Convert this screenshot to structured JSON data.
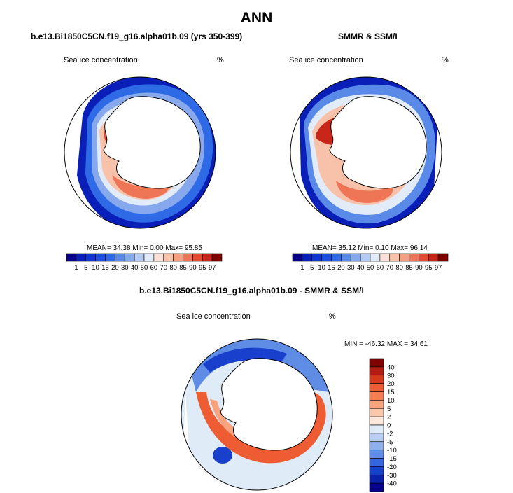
{
  "title": "ANN",
  "panels": [
    {
      "title": "b.e13.Bi1850C5CN.f19_g16.alpha01b.09 (yrs 350-399)",
      "field": "Sea ice concentration",
      "units": "%",
      "stats": {
        "mean_label": "MEAN=",
        "mean": "34.38",
        "min_label": "Min=",
        "min": "0.00",
        "max_label": "Max=",
        "max": "95.85"
      }
    },
    {
      "title": "SMMR & SSM/I",
      "field": "Sea ice concentration",
      "units": "%",
      "stats": {
        "mean_label": "MEAN=",
        "mean": "35.12",
        "min_label": "Min=",
        "min": "0.10",
        "max_label": "Max=",
        "max": "96.14"
      }
    },
    {
      "title": "b.e13.Bi1850C5CN.f19_g16.alpha01b.09 - SMMR & SSM/I",
      "field": "Sea ice concentration",
      "units": "%",
      "stats_text": "MIN = -46.32  MAX =  34.61"
    }
  ],
  "colorbar_top": {
    "labels": [
      "1",
      "5",
      "10",
      "15",
      "20",
      "30",
      "40",
      "50",
      "60",
      "70",
      "80",
      "85",
      "90",
      "95",
      "97"
    ],
    "colors": [
      "#08008a",
      "#0a1fb8",
      "#0f36d1",
      "#1a4fe0",
      "#2f6ae6",
      "#5a8ae8",
      "#87a8ec",
      "#b5cbf2",
      "#e2ecf8",
      "#fbe2d8",
      "#f8c2aa",
      "#f59e80",
      "#ef7557",
      "#e24b30",
      "#c9261a",
      "#7f0000"
    ]
  },
  "colorbar_diff": {
    "labels": [
      "40",
      "30",
      "20",
      "15",
      "10",
      "5",
      "2",
      "0",
      "-2",
      "-5",
      "-10",
      "-15",
      "-20",
      "-30",
      "-40"
    ],
    "colors": [
      "#7f0000",
      "#b01c0f",
      "#d63a1c",
      "#ee5c33",
      "#f47d52",
      "#f8a37e",
      "#fbc8ad",
      "#fde8dc",
      "#e0ebf8",
      "#b9cdf2",
      "#8fb0ec",
      "#5f8de6",
      "#3466df",
      "#1840cc",
      "#0b20a8",
      "#08008a"
    ]
  },
  "icons": {
    "map_projection": "polar-stereographic-map"
  }
}
